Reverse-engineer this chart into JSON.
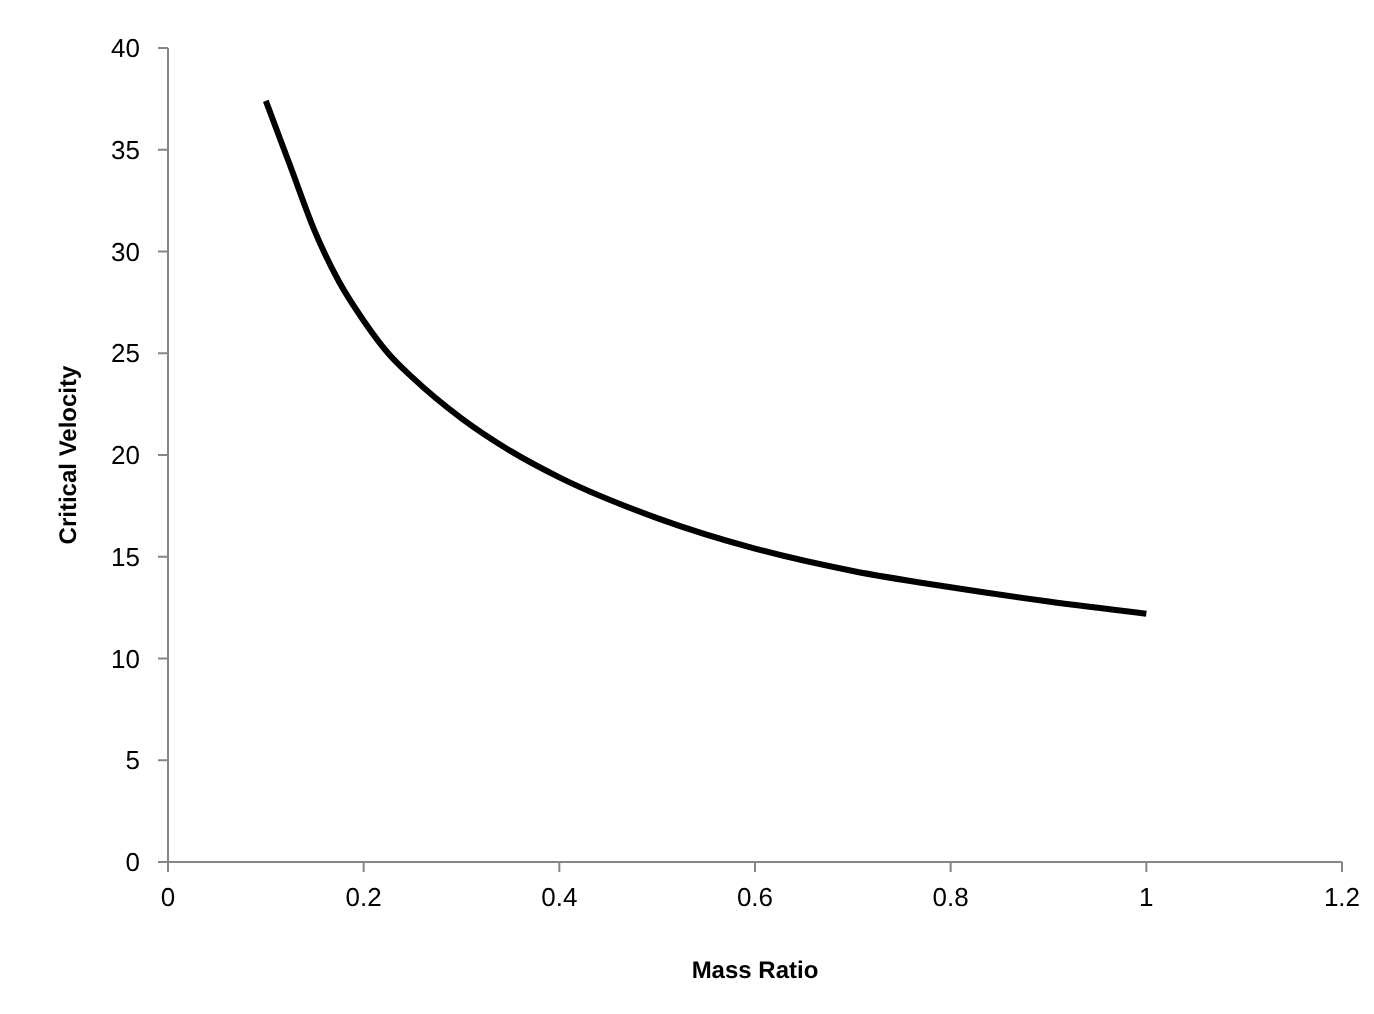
{
  "chart_data": {
    "type": "line",
    "xlabel": "Mass  Ratio",
    "ylabel": "Critical Velocity",
    "xlim": [
      0,
      1.2
    ],
    "xticks": [
      0,
      0.2,
      0.4,
      0.6,
      0.8,
      1,
      1.2
    ],
    "ylim": [
      0,
      40
    ],
    "yticks": [
      0,
      5,
      10,
      15,
      20,
      25,
      30,
      35,
      40
    ],
    "grid": false,
    "marker": "none",
    "line_style": "solid",
    "series": [
      {
        "color": "#000000",
        "x": [
          0.1,
          0.125,
          0.15,
          0.175,
          0.2,
          0.225,
          0.25,
          0.3,
          0.35,
          0.4,
          0.5,
          0.6,
          0.7,
          0.8,
          0.9,
          1
        ],
        "values": [
          37.4,
          34.2,
          31.0,
          28.5,
          26.6,
          25.0,
          23.8,
          21.8,
          20.2,
          18.9,
          16.9,
          15.4,
          14.3,
          13.5,
          12.8,
          12.2
        ]
      }
    ]
  }
}
